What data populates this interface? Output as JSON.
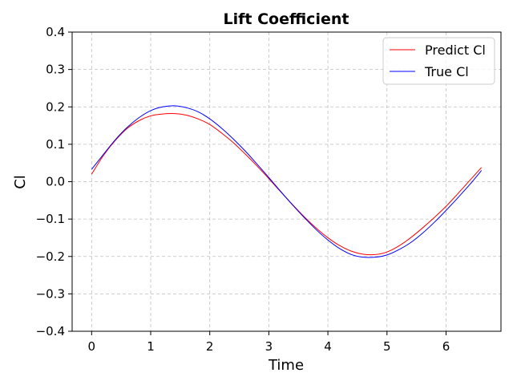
{
  "chart_data": {
    "type": "line",
    "title": "Lift Coefficient",
    "xlabel": "Time",
    "ylabel": "Cl",
    "xlim": [
      -0.33,
      6.93
    ],
    "ylim": [
      -0.4,
      0.4
    ],
    "xticks": [
      0,
      1,
      2,
      3,
      4,
      5,
      6
    ],
    "yticks": [
      -0.4,
      -0.3,
      -0.2,
      -0.1,
      0.0,
      0.1,
      0.2,
      0.3,
      0.4
    ],
    "xtick_labels": [
      "0",
      "1",
      "2",
      "3",
      "4",
      "5",
      "6"
    ],
    "ytick_labels": [
      "−0.4",
      "−0.3",
      "−0.2",
      "−0.1",
      "0.0",
      "0.1",
      "0.2",
      "0.3",
      "0.4"
    ],
    "grid": true,
    "legend_position": "top-right",
    "series": [
      {
        "name": "Predict Cl",
        "color": "#ff0000",
        "x": [
          0.0,
          0.2,
          0.4,
          0.6,
          0.8,
          1.0,
          1.2,
          1.4,
          1.6,
          1.8,
          2.0,
          2.2,
          2.4,
          2.6,
          2.8,
          3.0,
          3.2,
          3.4,
          3.6,
          3.8,
          4.0,
          4.2,
          4.4,
          4.6,
          4.8,
          5.0,
          5.2,
          5.4,
          5.6,
          5.8,
          6.0,
          6.2,
          6.4,
          6.6
        ],
        "y": [
          0.02,
          0.07,
          0.11,
          0.142,
          0.163,
          0.176,
          0.181,
          0.182,
          0.178,
          0.168,
          0.153,
          0.13,
          0.104,
          0.074,
          0.042,
          0.008,
          -0.027,
          -0.061,
          -0.094,
          -0.124,
          -0.15,
          -0.171,
          -0.186,
          -0.194,
          -0.195,
          -0.188,
          -0.172,
          -0.15,
          -0.124,
          -0.096,
          -0.066,
          -0.032,
          0.003,
          0.038
        ]
      },
      {
        "name": "True Cl",
        "color": "#0000ff",
        "x": [
          0.0,
          0.2,
          0.4,
          0.6,
          0.8,
          1.0,
          1.2,
          1.4,
          1.6,
          1.8,
          2.0,
          2.2,
          2.4,
          2.6,
          2.8,
          3.0,
          3.2,
          3.4,
          3.6,
          3.8,
          4.0,
          4.2,
          4.4,
          4.6,
          4.8,
          5.0,
          5.2,
          5.4,
          5.6,
          5.8,
          6.0,
          6.2,
          6.4,
          6.6
        ],
        "y": [
          0.033,
          0.073,
          0.112,
          0.145,
          0.171,
          0.19,
          0.2,
          0.203,
          0.198,
          0.187,
          0.168,
          0.143,
          0.114,
          0.082,
          0.047,
          0.011,
          -0.026,
          -0.062,
          -0.096,
          -0.128,
          -0.156,
          -0.179,
          -0.195,
          -0.202,
          -0.202,
          -0.196,
          -0.182,
          -0.163,
          -0.138,
          -0.109,
          -0.077,
          -0.043,
          -0.008,
          0.03
        ]
      }
    ]
  }
}
